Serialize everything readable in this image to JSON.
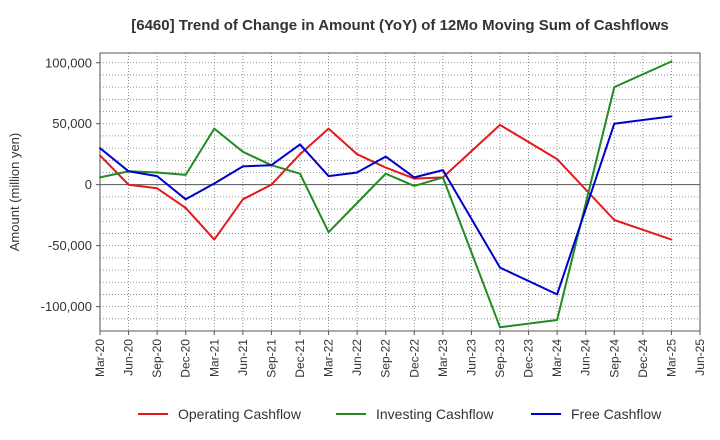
{
  "chart_data": {
    "type": "line",
    "title": "[6460]  Trend of Change in Amount (YoY) of 12Mo Moving Sum of Cashflows",
    "xlabel": "",
    "ylabel": "Amount (million yen)",
    "ylim": [
      -120000,
      108000
    ],
    "yticks": [
      100000,
      50000,
      0,
      -50000,
      -100000
    ],
    "ytick_labels": [
      "100,000",
      "50,000",
      "0",
      "-50,000",
      "-100,000"
    ],
    "categories": [
      "Mar-20",
      "Jun-20",
      "Sep-20",
      "Dec-20",
      "Mar-21",
      "Jun-21",
      "Sep-21",
      "Dec-21",
      "Mar-22",
      "Jun-22",
      "Sep-22",
      "Dec-22",
      "Mar-23",
      "Jun-23",
      "Sep-23",
      "Dec-23",
      "Mar-24",
      "Jun-24",
      "Sep-24",
      "Dec-24",
      "Mar-25",
      "Jun-25"
    ],
    "grid": true,
    "legend_position": "bottom",
    "series": [
      {
        "name": "Operating Cashflow",
        "color": "#e31a1c",
        "values": [
          24000,
          0,
          -3000,
          -19000,
          -45000,
          -12000,
          0,
          25000,
          46000,
          25000,
          14000,
          5000,
          6000,
          null,
          49000,
          null,
          21000,
          null,
          -29000,
          null,
          -45000,
          null
        ]
      },
      {
        "name": "Investing Cashflow",
        "color": "#228b22",
        "values": [
          6000,
          11000,
          10000,
          8000,
          46000,
          27000,
          16000,
          9000,
          -39000,
          -15000,
          9000,
          -1000,
          6000,
          null,
          -117000,
          null,
          -111000,
          null,
          80000,
          null,
          101000,
          null
        ]
      },
      {
        "name": "Free Cashflow",
        "color": "#0000cc",
        "values": [
          30000,
          11000,
          7000,
          -12000,
          1000,
          15000,
          16000,
          33000,
          7000,
          10000,
          23000,
          6000,
          12000,
          null,
          -68000,
          null,
          -90000,
          null,
          50000,
          null,
          56000,
          null
        ]
      }
    ]
  }
}
